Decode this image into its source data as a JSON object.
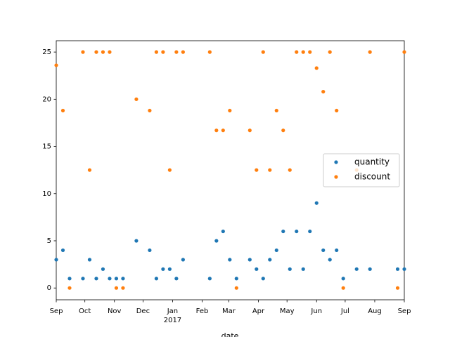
{
  "chart_data": {
    "type": "scatter",
    "xlabel": "date",
    "x": [
      0,
      7,
      14,
      28,
      35,
      42,
      49,
      56,
      63,
      70,
      84,
      98,
      105,
      112,
      119,
      126,
      133,
      161,
      168,
      175,
      182,
      189,
      203,
      210,
      217,
      224,
      231,
      238,
      245,
      252,
      259,
      266,
      273,
      280,
      287,
      294,
      301,
      315,
      329,
      358,
      365
    ],
    "series": [
      {
        "name": "quantity",
        "color": "#1f77b4",
        "values": [
          3,
          4,
          1,
          1,
          3,
          1,
          2,
          1,
          1,
          1,
          5,
          4,
          1,
          2,
          2,
          1,
          3,
          1,
          5,
          6,
          3,
          1,
          3,
          2,
          1,
          3,
          4,
          6,
          2,
          6,
          2,
          6,
          9,
          4,
          3,
          4,
          1,
          2,
          2,
          2,
          2
        ]
      },
      {
        "name": "discount",
        "color": "#ff7f0e",
        "values": [
          23.6,
          18.8,
          0,
          25,
          12.5,
          25,
          25,
          25,
          0,
          0,
          20,
          18.8,
          25,
          25,
          12.5,
          25,
          25,
          25,
          16.7,
          16.7,
          18.8,
          0,
          16.7,
          12.5,
          25,
          12.5,
          18.8,
          16.7,
          12.5,
          25,
          25,
          25,
          23.3,
          20.8,
          25,
          18.8,
          0,
          12.5,
          25,
          0,
          25
        ]
      }
    ],
    "xlim": [
      0,
      365
    ],
    "xticks": [
      {
        "value": 0,
        "label": "Sep"
      },
      {
        "value": 30,
        "label": "Oct"
      },
      {
        "value": 61,
        "label": "Nov"
      },
      {
        "value": 91,
        "label": "Dec"
      },
      {
        "value": 122,
        "label": "Jan\n2017"
      },
      {
        "value": 153,
        "label": "Feb"
      },
      {
        "value": 181,
        "label": "Mar"
      },
      {
        "value": 212,
        "label": "Apr"
      },
      {
        "value": 242,
        "label": "May"
      },
      {
        "value": 273,
        "label": "Jun"
      },
      {
        "value": 303,
        "label": "Jul"
      },
      {
        "value": 334,
        "label": "Aug"
      },
      {
        "value": 365,
        "label": "Sep"
      }
    ],
    "ylim": [
      -1.25,
      26.2
    ],
    "yticks": [
      0,
      5,
      10,
      15,
      20,
      25
    ],
    "grid": false,
    "legend": "center right"
  }
}
